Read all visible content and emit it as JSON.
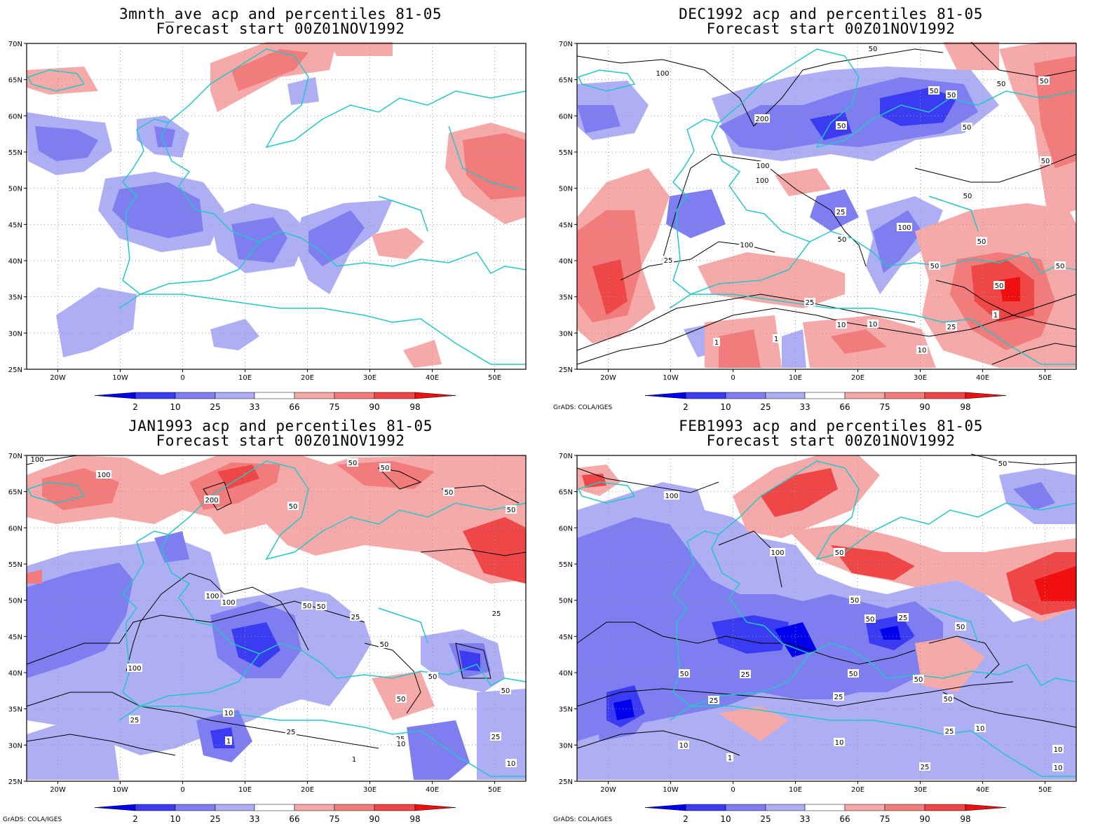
{
  "colors": {
    "coast": "#23c7c7",
    "blue_2": "#0000ee",
    "blue_10": "#3b3bf2",
    "blue_25": "#7e7ef0",
    "blue_33": "#aeaef5",
    "red_66": "#f5a9a9",
    "red_75": "#f27c7c",
    "red_90": "#ef4747",
    "red_98": "#f00f0f",
    "contour": "#000000",
    "grid": "#9a9a9a"
  },
  "axes": {
    "lon_labels": [
      "20W",
      "10W",
      "0",
      "10E",
      "20E",
      "30E",
      "40E",
      "50E"
    ],
    "lat_labels": [
      "70N",
      "65N",
      "60N",
      "55N",
      "50N",
      "45N",
      "40N",
      "35N",
      "30N",
      "25N"
    ]
  },
  "colorbar": {
    "labels": [
      "2",
      "10",
      "25",
      "33",
      "66",
      "75",
      "90",
      "98"
    ]
  },
  "credit": "GrADS: COLA/IGES",
  "panels": [
    {
      "title_line1": "3mnth_ave acp and percentiles 81-05",
      "title_line2": "Forecast start 00Z01NOV1992",
      "contour_labels": []
    },
    {
      "title_line1": "DEC1992 acp and percentiles 81-05",
      "title_line2": "Forecast start 00Z01NOV1992",
      "contour_labels": [
        "50",
        "100",
        "50",
        "50",
        "50",
        "200",
        "50",
        "50",
        "50",
        "100",
        "100",
        "50",
        "50",
        "25",
        "100",
        "50",
        "100",
        "50",
        "50",
        "50",
        "25",
        "50",
        "25",
        "10",
        "25",
        "10",
        "1",
        "1",
        "1",
        "10"
      ]
    },
    {
      "title_line1": "JAN1993 acp and percentiles 81-05",
      "title_line2": "Forecast start 00Z01NOV1992",
      "contour_labels": [
        "100",
        "100",
        "200",
        "50",
        "50",
        "50",
        "50",
        "50",
        "100",
        "100",
        "50",
        "50",
        "25",
        "25",
        "50",
        "100",
        "50",
        "50",
        "25",
        "50",
        "10",
        "25",
        "1",
        "25",
        "10",
        "25",
        "1",
        "10"
      ]
    },
    {
      "title_line1": "FEB1993 acp and percentiles 81-05",
      "title_line2": "Forecast start 00Z01NOV1992",
      "contour_labels": [
        "50",
        "100",
        "100",
        "50",
        "50",
        "50",
        "25",
        "50",
        "25",
        "50",
        "25",
        "50",
        "50",
        "25",
        "50",
        "25",
        "10",
        "10",
        "1",
        "10",
        "10",
        "25",
        "10"
      ]
    }
  ]
}
